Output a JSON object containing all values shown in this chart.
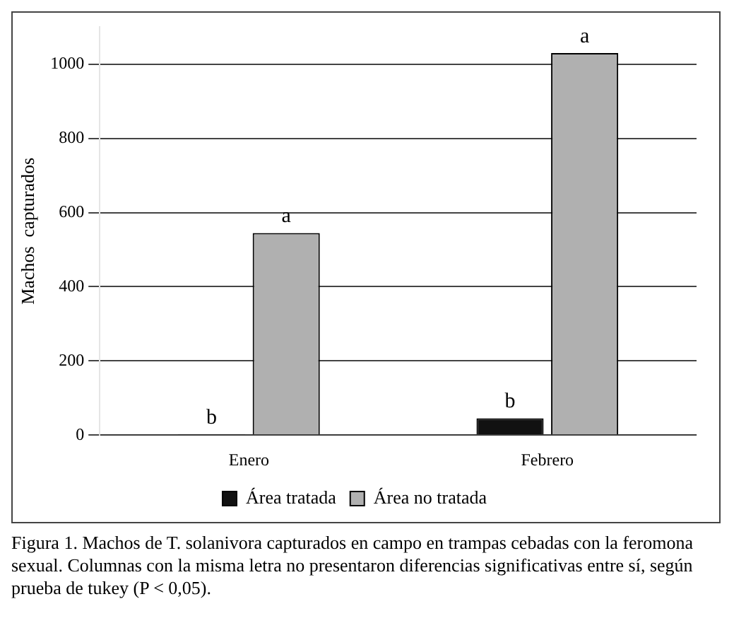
{
  "chart_data": {
    "type": "bar",
    "ylabel": "Machos  capturados",
    "categories": [
      "Enero",
      "Febrero"
    ],
    "series": [
      {
        "name": "Área tratada",
        "color": "#111111",
        "values": [
          3,
          45
        ],
        "value_labels": [
          "b",
          "b"
        ]
      },
      {
        "name": "Área no tratada",
        "color": "#b0b0b0",
        "values": [
          545,
          1030
        ],
        "value_labels": [
          "a",
          "a"
        ]
      }
    ],
    "ylim": [
      0,
      1100
    ],
    "yticks": [
      0,
      200,
      400,
      600,
      800,
      1000
    ],
    "grid": "y",
    "legend": "bottom",
    "annotations": [
      "Figura 1. Machos de T. solanivora capturados en campo en trampas cebadas con la feromona sexual. Columnas con la misma letra no presentaron diferencias significativas entre sí, según prueba de tukey (P < 0,05)."
    ]
  }
}
